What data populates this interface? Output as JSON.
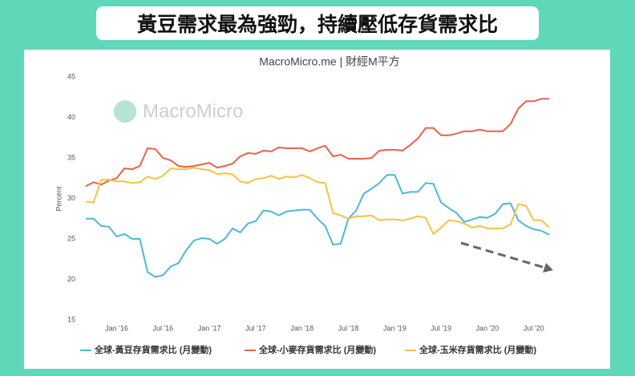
{
  "chart_data": {
    "type": "line",
    "title": "黃豆需求最為強勁，持續壓低存貨需求比",
    "subtitle": "MacroMicro.me | 財經M平方",
    "watermark": "MacroMicro",
    "y_label": "Percent",
    "categories": [
      null,
      null,
      null,
      null,
      "Jan '16",
      null,
      null,
      null,
      null,
      null,
      "Jul '16",
      null,
      null,
      null,
      null,
      null,
      "Jan '17",
      null,
      null,
      null,
      null,
      null,
      "Jul '17",
      null,
      null,
      null,
      null,
      null,
      "Jan '18",
      null,
      null,
      null,
      null,
      null,
      "Jul '18",
      null,
      null,
      null,
      null,
      null,
      "Jan '19",
      null,
      null,
      null,
      null,
      null,
      "Jul '19",
      null,
      null,
      null,
      null,
      null,
      "Jan '20",
      null,
      null,
      null,
      null,
      null,
      "Jul '20",
      null,
      null
    ],
    "series": [
      {
        "name": "全球-黃豆存貨需求比 (月變動)",
        "color": "#4db8d9",
        "values": [
          27.5,
          27.5,
          26.6,
          26.5,
          25.3,
          25.6,
          25.0,
          25.0,
          20.9,
          20.3,
          20.5,
          21.6,
          22.0,
          23.6,
          24.8,
          25.1,
          25.0,
          24.4,
          25.0,
          26.3,
          25.8,
          26.9,
          27.2,
          28.5,
          28.4,
          27.9,
          28.4,
          28.5,
          28.6,
          28.6,
          27.5,
          26.6,
          24.3,
          24.4,
          27.5,
          28.5,
          30.6,
          31.2,
          31.9,
          32.9,
          32.9,
          30.6,
          30.8,
          30.8,
          31.9,
          31.8,
          29.5,
          28.8,
          28.2,
          27.1,
          27.4,
          27.7,
          27.6,
          28.1,
          29.3,
          29.4,
          27.3,
          26.6,
          26.2,
          26.0,
          25.5
        ]
      },
      {
        "name": "全球-小麥存貨需求比 (月變動)",
        "color": "#e8624b",
        "values": [
          31.5,
          32.0,
          31.7,
          32.2,
          32.5,
          33.7,
          33.6,
          34.0,
          36.2,
          36.1,
          35.0,
          34.7,
          34.0,
          33.9,
          34.0,
          34.2,
          34.4,
          33.8,
          34.0,
          34.3,
          35.2,
          35.6,
          35.5,
          35.9,
          35.8,
          36.3,
          36.2,
          36.2,
          36.2,
          35.8,
          36.2,
          36.5,
          35.2,
          35.4,
          34.9,
          34.9,
          34.9,
          35.0,
          35.9,
          36.0,
          36.0,
          35.9,
          36.6,
          37.4,
          38.7,
          38.7,
          37.8,
          37.8,
          38.0,
          38.3,
          38.3,
          38.5,
          38.3,
          38.3,
          38.3,
          39.2,
          41.1,
          42.0,
          42.0,
          42.3,
          42.3
        ]
      },
      {
        "name": "全球-玉米存貨需求比 (月變動)",
        "color": "#f6c244",
        "values": [
          29.6,
          29.5,
          32.3,
          32.3,
          32.1,
          32.1,
          31.9,
          32.0,
          32.7,
          32.4,
          32.8,
          33.7,
          33.6,
          33.6,
          33.8,
          33.6,
          33.5,
          33.0,
          33.1,
          33.0,
          32.1,
          31.9,
          32.4,
          32.5,
          32.8,
          32.4,
          32.7,
          32.6,
          32.9,
          32.5,
          32.0,
          31.9,
          28.2,
          27.9,
          27.5,
          27.8,
          27.8,
          27.9,
          27.3,
          27.4,
          27.4,
          27.3,
          27.5,
          27.8,
          27.6,
          25.6,
          26.4,
          27.3,
          27.2,
          26.9,
          26.4,
          26.6,
          26.3,
          26.3,
          26.3,
          26.8,
          29.3,
          29.1,
          27.3,
          27.3,
          26.4
        ]
      }
    ],
    "ylim": [
      15,
      45
    ],
    "yticks": [
      15,
      20,
      25,
      30,
      35,
      40,
      45
    ],
    "grid": false,
    "legend": "bottom"
  }
}
